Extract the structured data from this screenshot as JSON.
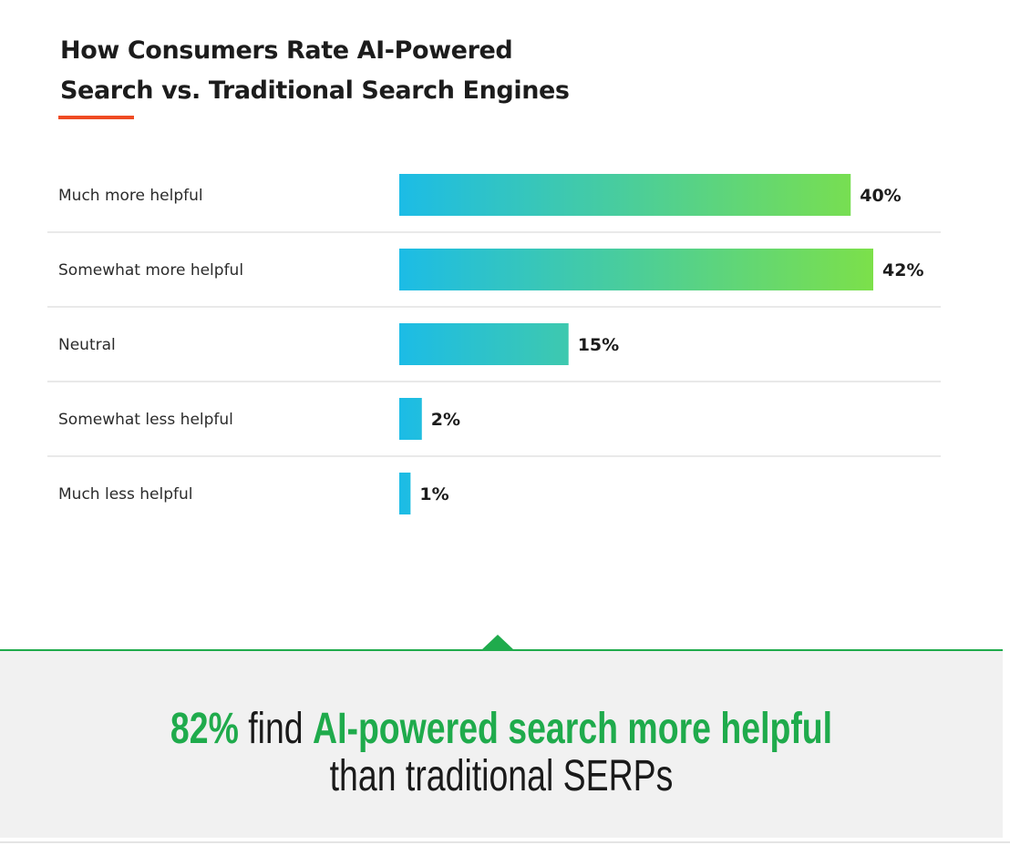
{
  "title": {
    "line1": "How Consumers Rate AI-Powered",
    "line2": "Search vs. Traditional Search Engines"
  },
  "colors": {
    "accent": "#ef4b23",
    "bar_start": "#1cbce6",
    "bar_end": "#7ce04a",
    "highlight": "#1fab4c"
  },
  "chart_data": {
    "type": "bar",
    "orientation": "horizontal",
    "title": "How Consumers Rate AI-Powered Search vs. Traditional Search Engines",
    "categories": [
      "Much more helpful",
      "Somewhat more helpful",
      "Neutral",
      "Somewhat less helpful",
      "Much less helpful"
    ],
    "values": [
      40,
      42,
      15,
      2,
      1
    ],
    "value_labels": [
      "40%",
      "42%",
      "15%",
      "2%",
      "1%"
    ],
    "unit": "%",
    "grid": false,
    "legend": "none"
  },
  "callout": {
    "stat": "82%",
    "text1": " find ",
    "highlight": "AI-powered search more helpful",
    "text2": " than traditional SERPs"
  }
}
